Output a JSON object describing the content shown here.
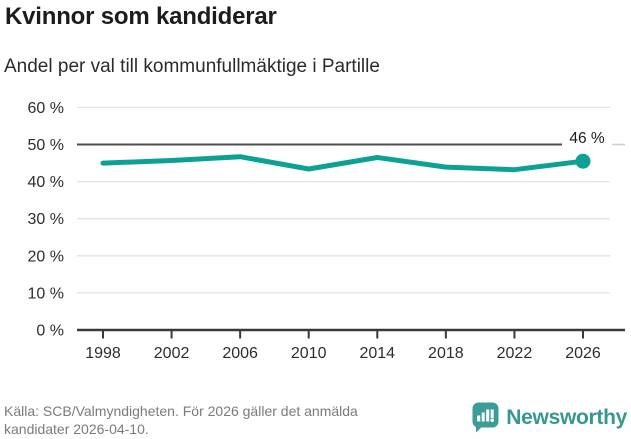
{
  "header": {
    "title": "Kvinnor som kandiderar",
    "subtitle": "Andel per val till kommunfullmäktige i Partille"
  },
  "chart_data": {
    "type": "line",
    "title": "Kvinnor som kandiderar",
    "subtitle": "Andel per val till kommunfullmäktige i Partille",
    "x": [
      1998,
      2002,
      2006,
      2010,
      2014,
      2018,
      2022,
      2026
    ],
    "series": [
      {
        "values": [
          45.0,
          45.7,
          46.7,
          43.4,
          46.5,
          43.9,
          43.2,
          45.5
        ]
      }
    ],
    "end_label": "46 %",
    "y_ticks": [
      {
        "value": 0,
        "label": "0 %"
      },
      {
        "value": 10,
        "label": "10 %"
      },
      {
        "value": 20,
        "label": "20 %"
      },
      {
        "value": 30,
        "label": "30 %"
      },
      {
        "value": 40,
        "label": "40 %"
      },
      {
        "value": 50,
        "label": "50 %"
      },
      {
        "value": 60,
        "label": "60 %"
      }
    ],
    "ylim": [
      0,
      60
    ],
    "reference_line": 50,
    "grid": true,
    "legend": false,
    "marker": "end-dot"
  },
  "footer": {
    "source_text": "Källa: SCB/Valmyndigheten. För 2026 gäller det anmälda kandidater 2026-04-10.",
    "brand_name": "Newsworthy"
  },
  "colors": {
    "line": "#0da196",
    "grid": "#e3e3e3",
    "reference": "#4f4f4f",
    "axis": "#3a3a3a",
    "tick_text": "#2d2d2d",
    "end_label_text": "#1c1c1a",
    "muted_text": "#7b7b7b",
    "brand_teal": "#3d9d96"
  }
}
